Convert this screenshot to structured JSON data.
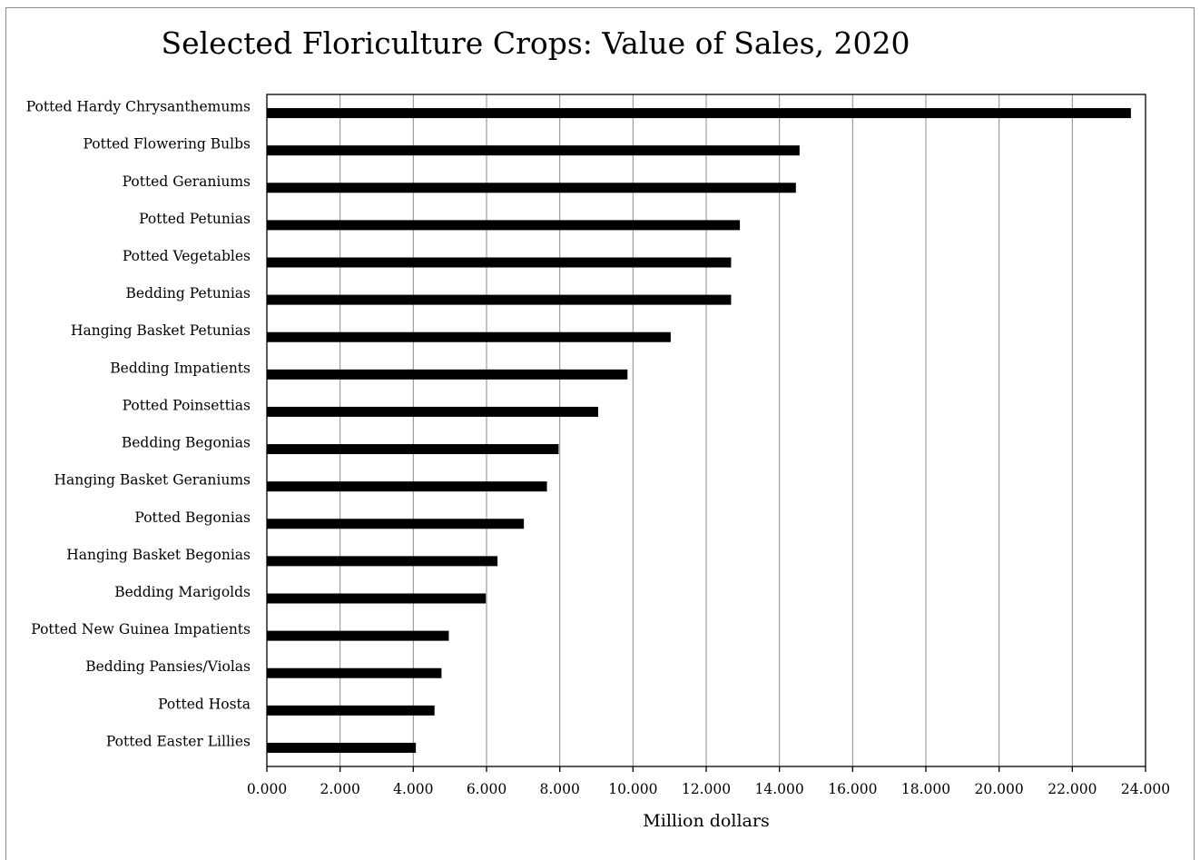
{
  "chart_data": {
    "type": "bar",
    "orientation": "horizontal",
    "title": "Selected Floriculture Crops: Value of Sales, 2020",
    "xlabel": "Million dollars",
    "ylabel": "",
    "xlim": [
      0,
      24
    ],
    "x_ticks": [
      "0.000",
      "2.000",
      "4.000",
      "6.000",
      "8.000",
      "10.000",
      "12.000",
      "14.000",
      "16.000",
      "18.000",
      "20.000",
      "22.000",
      "24.000"
    ],
    "grid": "vertical",
    "bar_color": "#000000",
    "categories": [
      "Potted Hardy Chrysanthemums",
      "Potted Flowering Bulbs",
      "Potted Geraniums",
      "Potted Petunias",
      "Potted Vegetables",
      "Bedding Petunias",
      "Hanging Basket Petunias",
      "Bedding Impatients",
      "Potted Poinsettias",
      "Bedding Begonias",
      "Hanging Basket Geraniums",
      "Potted Begonias",
      "Hanging Basket Begonias",
      "Bedding Marigolds",
      "Potted New Guinea Impatients",
      "Bedding Pansies/Violas",
      "Potted Hosta",
      "Potted Easter Lillies"
    ],
    "values": [
      23.6,
      14.55,
      14.45,
      12.92,
      12.68,
      12.68,
      11.03,
      9.85,
      9.05,
      7.97,
      7.65,
      7.02,
      6.3,
      5.98,
      4.97,
      4.77,
      4.58,
      4.07
    ]
  }
}
